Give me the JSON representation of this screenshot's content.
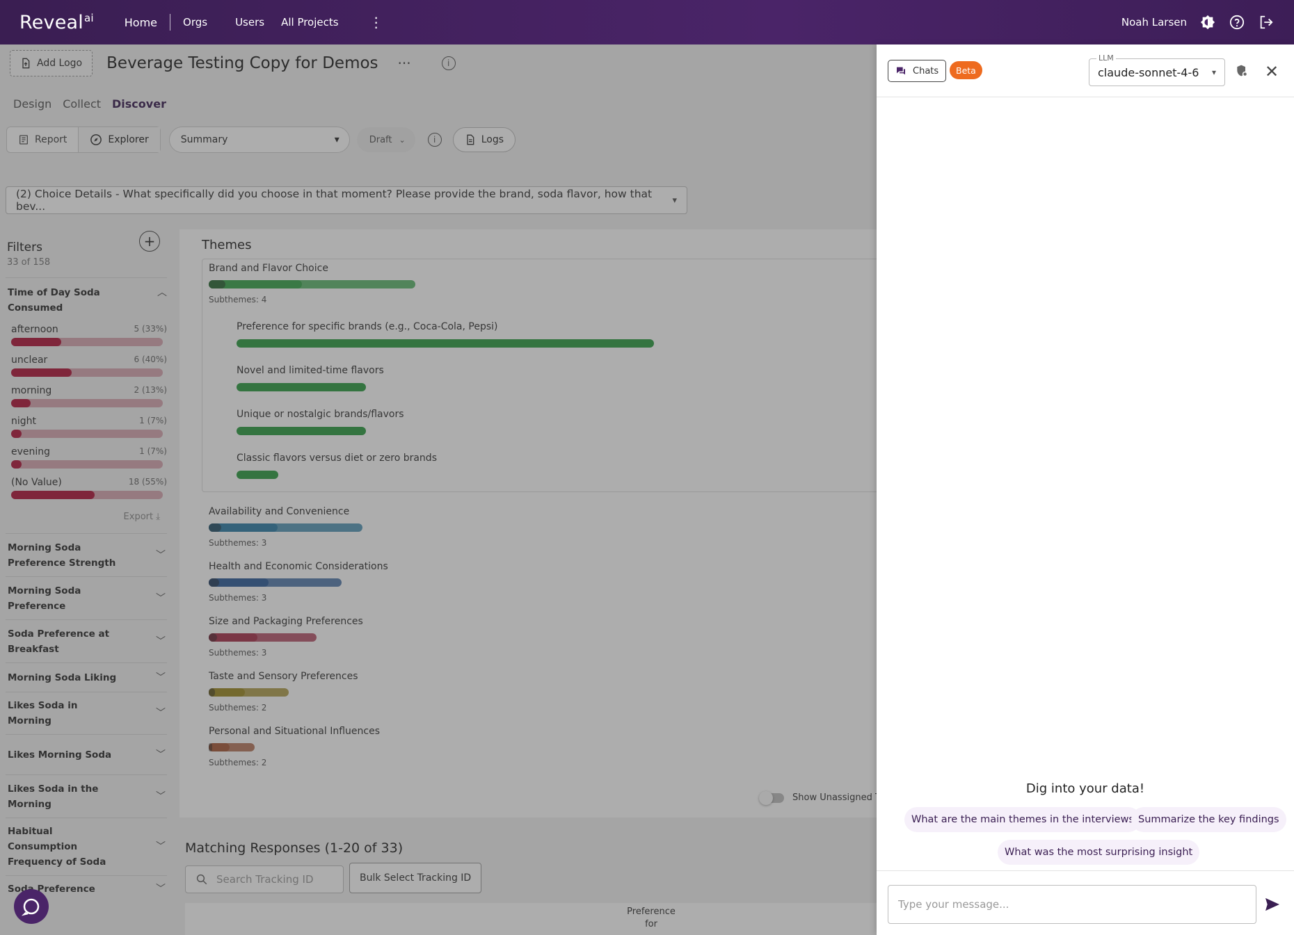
{
  "app": {
    "logo": "Reveal",
    "logo_sup": "ai"
  },
  "nav": {
    "home": "Home",
    "orgs": "Orgs",
    "users": "Users",
    "all_projects": "All Projects",
    "more": "⋮"
  },
  "user": {
    "name": "Noah Larsen"
  },
  "project": {
    "add_logo": "Add Logo",
    "title": "Beverage Testing Copy for Demos",
    "more": "···"
  },
  "subtabs": {
    "design": "Design",
    "collect": "Collect",
    "discover": "Discover"
  },
  "toolbar": {
    "report": "Report",
    "explorer": "Explorer",
    "view_select": "Summary",
    "status": "Draft",
    "logs": "Logs"
  },
  "question": "(2) Choice Details - What specifically did you choose in that moment? Please provide the brand, soda flavor, how that bev...",
  "filters": {
    "title": "Filters",
    "count": "33 of 158",
    "open_section": {
      "title": "Time of Day Soda Consumed",
      "options": [
        {
          "label": "afternoon",
          "value": "5 (33%)",
          "fraction": 0.33
        },
        {
          "label": "unclear",
          "value": "6 (40%)",
          "fraction": 0.4
        },
        {
          "label": "morning",
          "value": "2 (13%)",
          "fraction": 0.13
        },
        {
          "label": "night",
          "value": "1 (7%)",
          "fraction": 0.07
        },
        {
          "label": "evening",
          "value": "1 (7%)",
          "fraction": 0.07
        },
        {
          "label": "(No Value)",
          "value": "18 (55%)",
          "fraction": 0.55
        }
      ],
      "export": "Export"
    },
    "sections": [
      "Morning Soda Preference Strength",
      "Morning Soda Preference",
      "Soda Preference at Breakfast",
      "Morning Soda Liking",
      "Likes Soda in Morning",
      "Likes Morning Soda",
      "Likes Soda in the Morning",
      "Habitual Consumption Frequency of Soda",
      "Soda Preference"
    ]
  },
  "themes": {
    "title": "Themes",
    "items": [
      {
        "name": "Brand and Flavor Choice",
        "subthemes": "Subthemes: 4",
        "color": "#3aa64c",
        "share": 0.9
      },
      {
        "name": "Availability and Convenience",
        "subthemes": "Subthemes: 3",
        "color": "#2f7fa8",
        "share": 0.67
      },
      {
        "name": "Health and Economic Considerations",
        "subthemes": "Subthemes: 3",
        "color": "#2f5e9a",
        "share": 0.58
      },
      {
        "name": "Size and Packaging Preferences",
        "subthemes": "Subthemes: 3",
        "color": "#a8324d",
        "share": 0.47
      },
      {
        "name": "Taste and Sensory Preferences",
        "subthemes": "Subthemes: 2",
        "color": "#9d8a25",
        "share": 0.35
      },
      {
        "name": "Personal and Situational Influences",
        "subthemes": "Subthemes: 2",
        "color": "#a85a3a",
        "share": 0.2
      }
    ],
    "subthemes": [
      {
        "name": "Preference for specific brands (e.g., Coca-Cola, Pepsi)",
        "share": 1.0
      },
      {
        "name": "Novel and limited-time flavors",
        "share": 0.31
      },
      {
        "name": "Unique or nostalgic brands/flavors",
        "share": 0.31
      },
      {
        "name": "Classic flavors versus diet or zero brands",
        "share": 0.1
      }
    ],
    "show_unassigned": "Show Unassigned Themes"
  },
  "matching": {
    "title": "Matching Responses (1-20 of 33)",
    "search_placeholder": "Search Tracking ID",
    "bulk": "Bulk Select Tracking ID",
    "col_partial": "Preference for"
  },
  "chat": {
    "chats": "Chats",
    "beta": "Beta",
    "llm_label": "LLM",
    "llm_value": "claude-sonnet-4-6",
    "headline": "Dig into your data!",
    "suggestions": [
      "What are the main themes in the interviews",
      "Summarize the key findings",
      "What was the most surprising insight"
    ],
    "input_placeholder": "Type your message..."
  }
}
